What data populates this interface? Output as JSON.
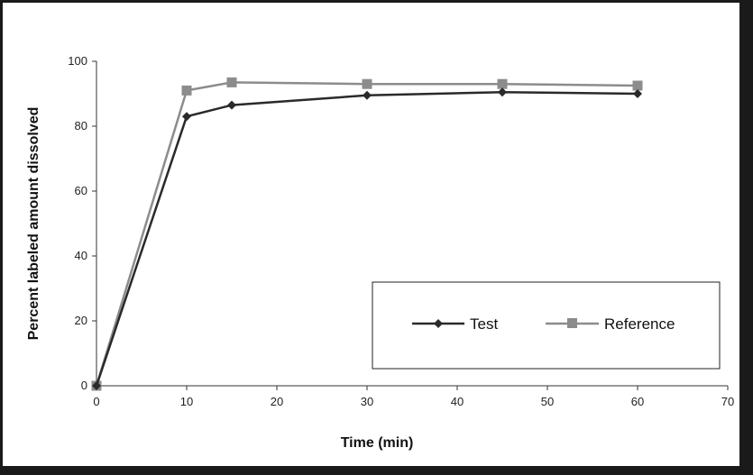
{
  "chart_data": {
    "type": "line",
    "title": "",
    "xlabel": "Time (min)",
    "ylabel": "Percent labeled amount dissolved",
    "xlim": [
      0,
      70
    ],
    "ylim": [
      0,
      100
    ],
    "xticks": [
      0,
      10,
      20,
      30,
      40,
      50,
      60,
      70
    ],
    "yticks": [
      0,
      20,
      40,
      60,
      80,
      100
    ],
    "grid": false,
    "legend_position": "bottom-right",
    "series": [
      {
        "name": "Test",
        "marker": "diamond",
        "color": "#2a2a2a",
        "x": [
          0,
          10,
          15,
          30,
          45,
          60
        ],
        "y": [
          0,
          83,
          86.5,
          89.5,
          90.5,
          90
        ]
      },
      {
        "name": "Reference",
        "marker": "square",
        "color": "#8c8c8c",
        "x": [
          0,
          10,
          15,
          30,
          45,
          60
        ],
        "y": [
          0,
          91,
          93.5,
          93,
          93,
          92.5
        ]
      }
    ]
  }
}
